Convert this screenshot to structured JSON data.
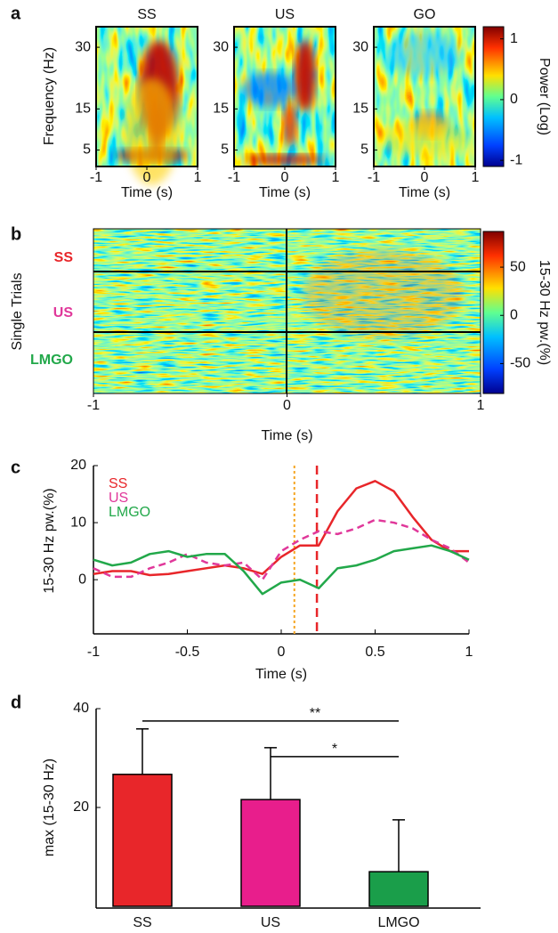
{
  "chart_data": [
    {
      "type": "heatmap",
      "panel_label": "a",
      "subplots": [
        {
          "title": "SS"
        },
        {
          "title": "US"
        },
        {
          "title": "GO"
        }
      ],
      "ylabel": "Frequency (Hz)",
      "xlabel": "Time (s)",
      "xlim": [
        -1,
        1
      ],
      "xticks": [
        -1,
        0,
        1
      ],
      "ylim": [
        1,
        35
      ],
      "yticks": [
        5,
        15,
        30
      ],
      "colorbar": {
        "label": "Power (Log)",
        "lim": [
          -1.1,
          1.2
        ],
        "ticks": [
          -1,
          0,
          1
        ]
      }
    },
    {
      "type": "heatmap",
      "panel_label": "b",
      "ylabel": "Single Trials",
      "xlabel": "Time (s)",
      "xlim": [
        -1,
        1
      ],
      "xticks": [
        -1,
        0,
        1
      ],
      "rows": [
        {
          "label": "SS",
          "color": "#e8262a"
        },
        {
          "label": "US",
          "color": "#e0389a"
        },
        {
          "label": "LMGO",
          "color": "#22a84a"
        }
      ],
      "colorbar": {
        "label": "15-30 Hz pw.(%)",
        "lim": [
          -81,
          87
        ],
        "ticks": [
          -50,
          0,
          50
        ]
      }
    },
    {
      "type": "line",
      "panel_label": "c",
      "ylabel": "15-30 Hz pw.(%)",
      "xlabel": "Time (s)",
      "x": [
        -1,
        -0.9,
        -0.8,
        -0.7,
        -0.6,
        -0.5,
        -0.4,
        -0.3,
        -0.2,
        -0.1,
        0,
        0.1,
        0.2,
        0.3,
        0.4,
        0.5,
        0.6,
        0.7,
        0.8,
        0.9,
        1
      ],
      "series": [
        {
          "name": "SS",
          "color": "#e8262a",
          "style": "solid",
          "values": [
            1,
            1.5,
            1.5,
            0.8,
            1,
            1.5,
            2,
            2.5,
            2,
            1,
            4,
            6,
            6,
            12,
            16,
            17.3,
            15.5,
            11,
            7,
            5,
            5
          ]
        },
        {
          "name": "US",
          "color": "#e0389a",
          "style": "dashed",
          "values": [
            2,
            0.5,
            0.5,
            2,
            3,
            4.5,
            3,
            2.5,
            3,
            0,
            5,
            7,
            8.5,
            8,
            9,
            10.5,
            10,
            9,
            7,
            5.5,
            3
          ]
        },
        {
          "name": "LMGO",
          "color": "#22a84a",
          "style": "solid",
          "values": [
            3.5,
            2.5,
            3,
            4.5,
            5,
            4,
            4.5,
            4.5,
            1.5,
            -2.5,
            -0.5,
            0,
            -1.5,
            2,
            2.5,
            3.5,
            5,
            5.5,
            6,
            5,
            3.5
          ]
        }
      ],
      "vlines": [
        {
          "x": 0.07,
          "color": "#f5a623",
          "style": "dotted"
        },
        {
          "x": 0.19,
          "color": "#e8262a",
          "style": "dashed"
        }
      ],
      "xlim": [
        -1,
        1
      ],
      "xticks": [
        -1,
        -0.5,
        0,
        0.5,
        1
      ],
      "ylim": [
        -9.5,
        20
      ],
      "yticks": [
        0,
        10,
        20
      ]
    },
    {
      "type": "bar",
      "panel_label": "d",
      "ylabel": "max (15-30 Hz)",
      "categories": [
        "SS",
        "US",
        "LMGO"
      ],
      "values": [
        26.7,
        21.6,
        7.0
      ],
      "errors": [
        9.2,
        10.5,
        10.5
      ],
      "colors": [
        "#e8262a",
        "#e81e8c",
        "#1a9e4a"
      ],
      "ylim": [
        0,
        40
      ],
      "yticks": [
        20,
        40
      ],
      "annotations": [
        {
          "from": 0,
          "to": 2,
          "y": 37.5,
          "label": "**"
        },
        {
          "from": 1,
          "to": 2,
          "y": 30.3,
          "label": "*"
        }
      ]
    }
  ]
}
